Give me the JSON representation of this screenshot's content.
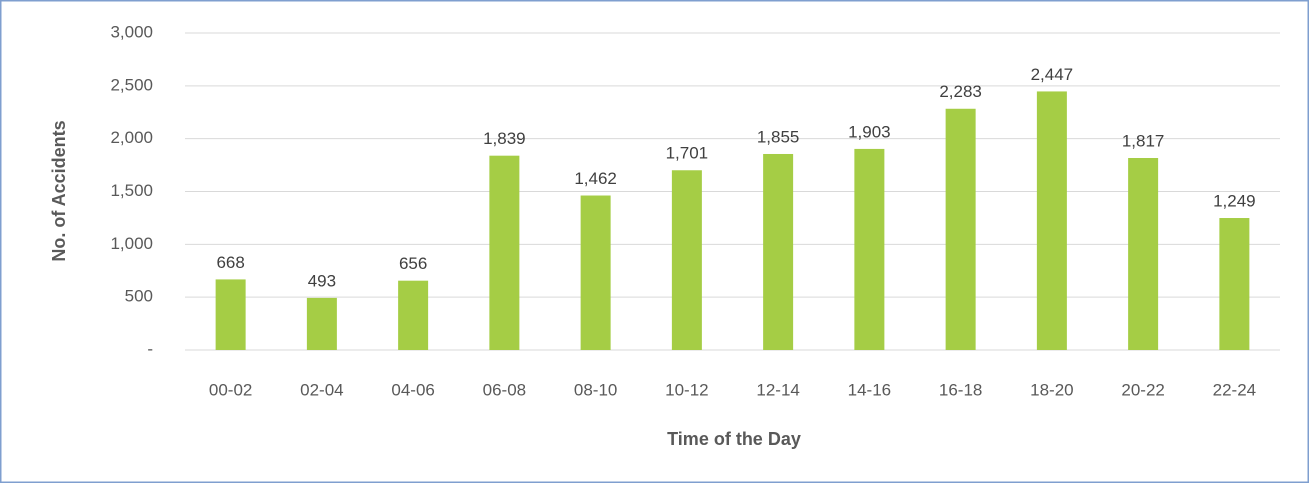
{
  "chart_data": {
    "type": "bar",
    "xlabel": "Time of the Day",
    "ylabel": "No. of Accidents",
    "categories": [
      "00-02",
      "02-04",
      "04-06",
      "06-08",
      "08-10",
      "10-12",
      "12-14",
      "14-16",
      "16-18",
      "18-20",
      "20-22",
      "22-24"
    ],
    "values": [
      668,
      493,
      656,
      1839,
      1462,
      1701,
      1855,
      1903,
      2283,
      2447,
      1817,
      1249
    ],
    "value_labels": [
      "668",
      "493",
      "656",
      "1,839",
      "1,462",
      "1,701",
      "1,855",
      "1,903",
      "2,283",
      "2,447",
      "1,817",
      "1,249"
    ],
    "color": "#a5cd45",
    "ylim": [
      0,
      3000
    ],
    "yticks": [
      {
        "value": 0,
        "label": "-"
      },
      500,
      {
        "value": 1000,
        "label": "1,000"
      },
      {
        "value": 1500,
        "label": "1,500"
      },
      {
        "value": 2000,
        "label": "2,000"
      },
      {
        "value": 2500,
        "label": "2,500"
      },
      {
        "value": 3000,
        "label": "3,000"
      }
    ],
    "grid": true
  }
}
